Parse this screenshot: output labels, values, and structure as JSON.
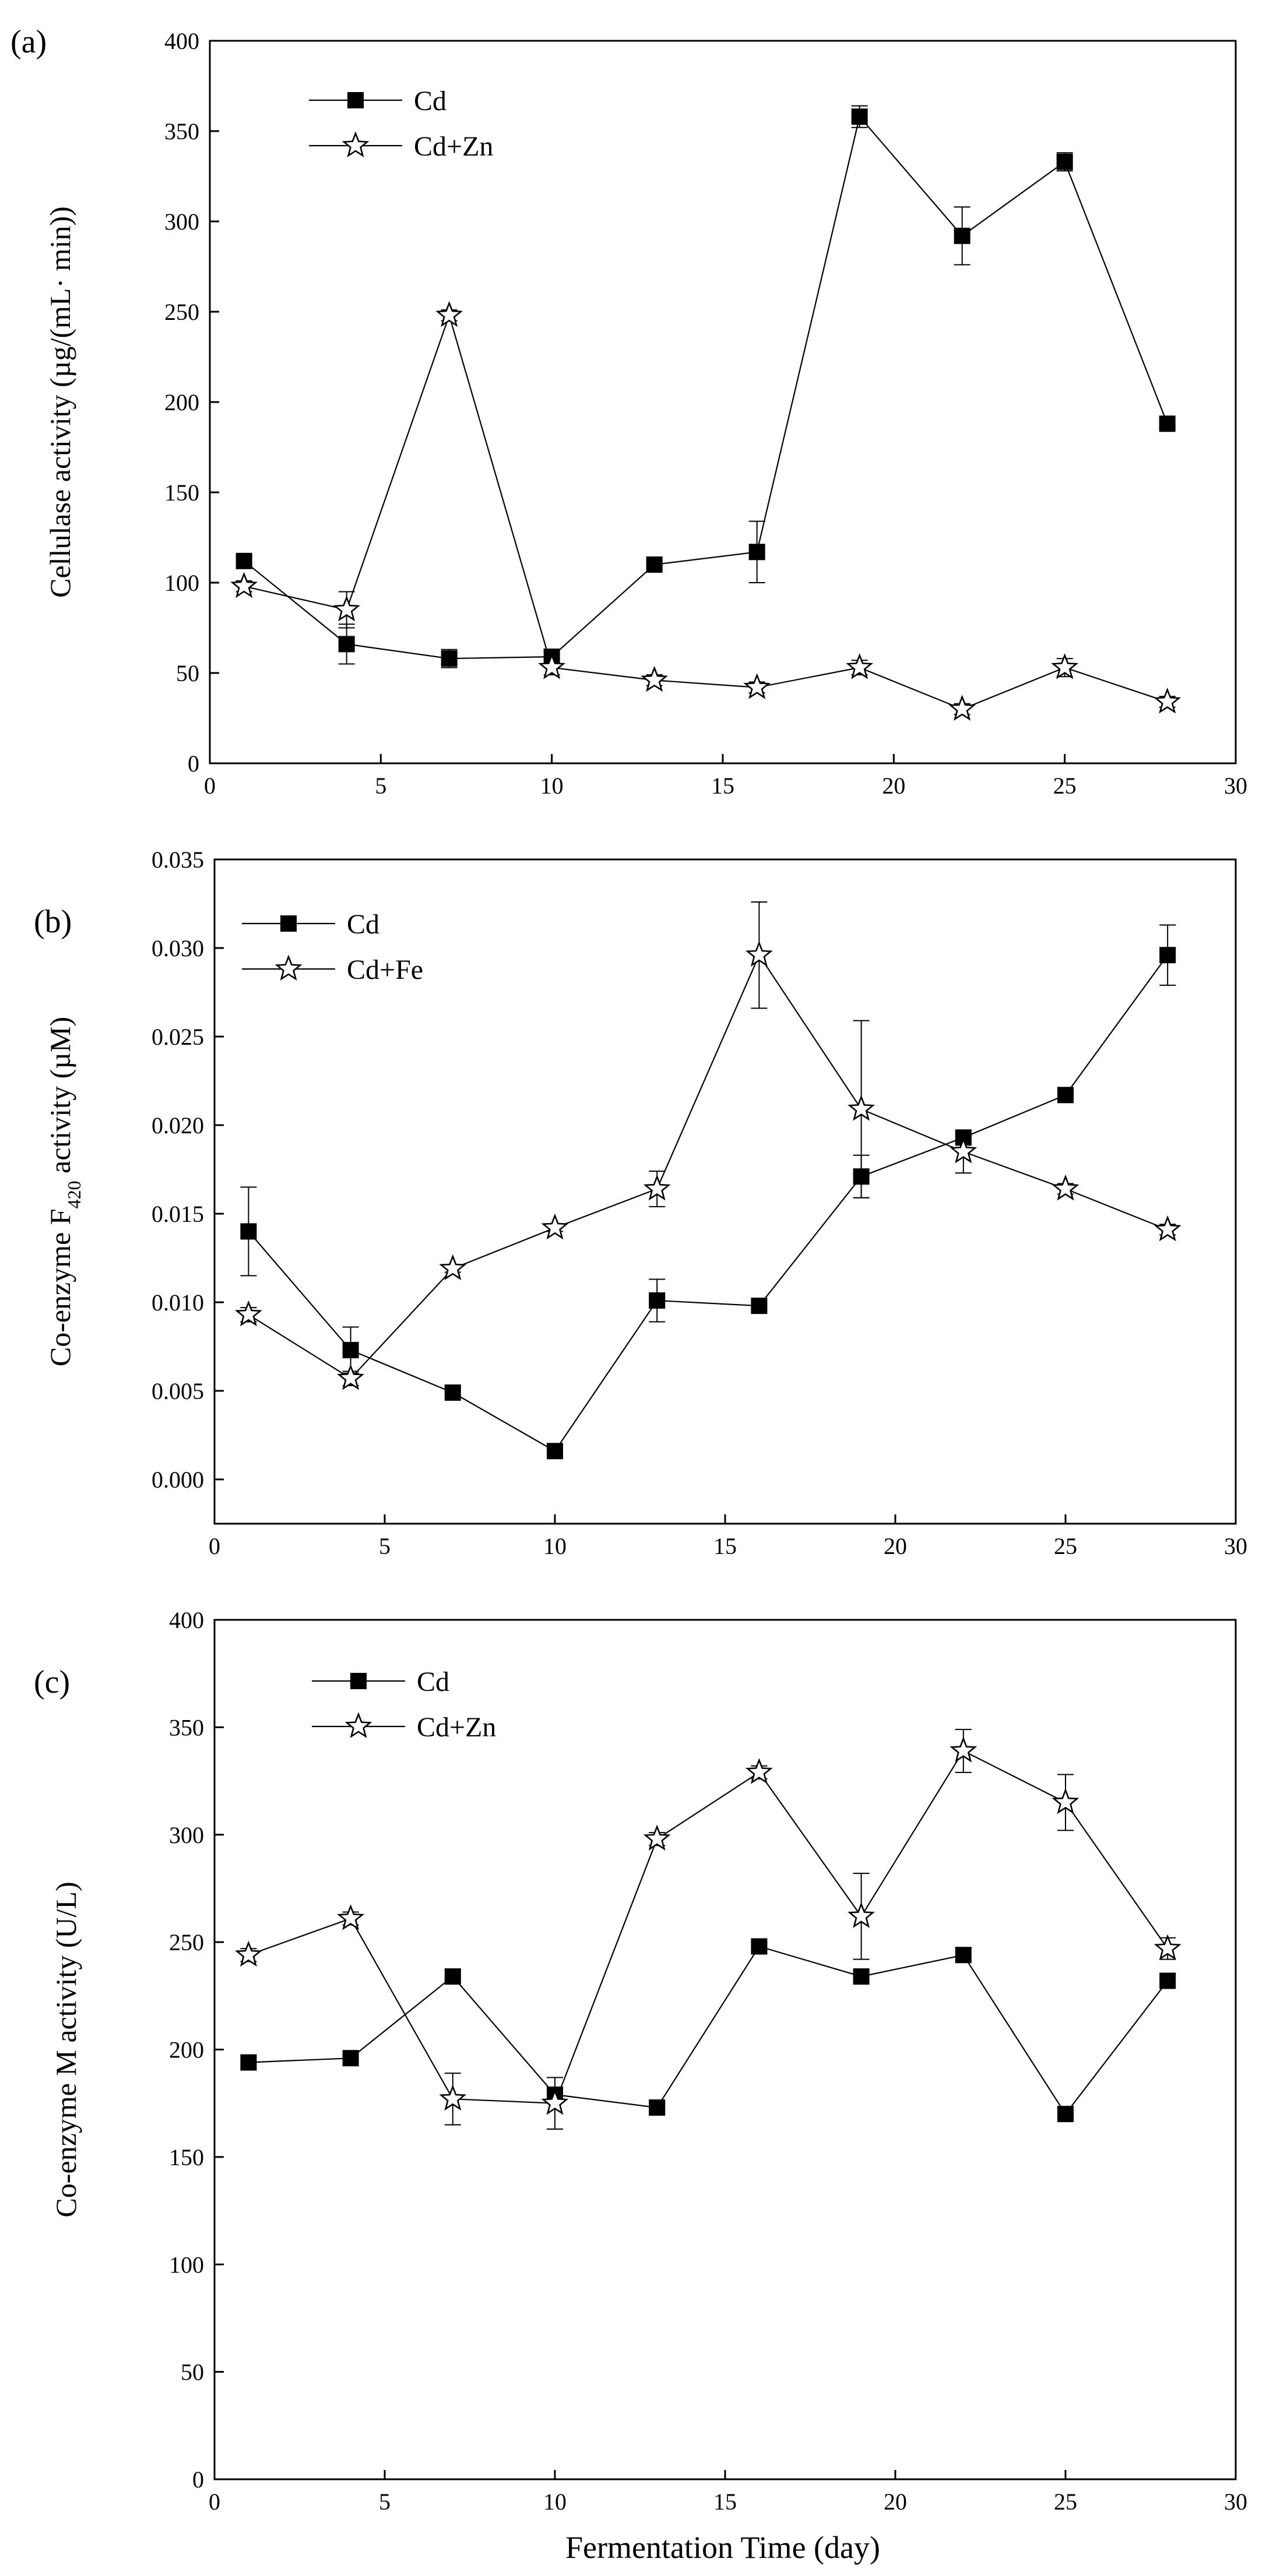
{
  "figure": {
    "xlabel": "Fermentation Time (day)"
  },
  "chart_data": [
    {
      "type": "line",
      "panel_tag": "(a)",
      "ylabel": "Cellulase activity (µg/(mL· min))",
      "xlim": [
        0,
        30
      ],
      "ylim": [
        0,
        400
      ],
      "xticks": [
        0,
        5,
        10,
        15,
        20,
        25,
        30
      ],
      "yticks": [
        0,
        50,
        100,
        150,
        200,
        250,
        300,
        350,
        400
      ],
      "xtick_labels": [
        "0",
        "5",
        "10",
        "15",
        "20",
        "25",
        "30"
      ],
      "ytick_labels": [
        "0",
        "50",
        "100",
        "150",
        "200",
        "250",
        "300",
        "350",
        "400"
      ],
      "legend_position": "top-left",
      "series": [
        {
          "name": "Cd",
          "marker": "square",
          "x": [
            1,
            4,
            7,
            10,
            13,
            16,
            19,
            22,
            25,
            28
          ],
          "y": [
            112,
            66,
            58,
            59,
            110,
            117,
            358,
            292,
            333,
            188
          ],
          "err": [
            3,
            11,
            5,
            4,
            2,
            17,
            6,
            16,
            5,
            2
          ]
        },
        {
          "name": "Cd+Zn",
          "marker": "star",
          "x": [
            1,
            4,
            7,
            10,
            13,
            16,
            19,
            22,
            25,
            28
          ],
          "y": [
            98,
            85,
            248,
            53,
            46,
            42,
            53,
            30,
            53,
            34
          ],
          "err": [
            3,
            10,
            3,
            4,
            3,
            3,
            4,
            3,
            5,
            3
          ]
        }
      ]
    },
    {
      "type": "line",
      "panel_tag": "(b)",
      "ylabel_pre": "Co-enzyme F",
      "ylabel_sub": "420",
      "ylabel_post": " activity (µM)",
      "xlim": [
        0,
        30
      ],
      "ylim": [
        -0.0025,
        0.035
      ],
      "xticks": [
        0,
        5,
        10,
        15,
        20,
        25,
        30
      ],
      "yticks": [
        0,
        0.005,
        0.01,
        0.015,
        0.02,
        0.025,
        0.03,
        0.035
      ],
      "xtick_labels": [
        "0",
        "5",
        "10",
        "15",
        "20",
        "25",
        "30"
      ],
      "ytick_labels": [
        "0.000",
        "0.005",
        "0.010",
        "0.015",
        "0.020",
        "0.025",
        "0.030",
        "0.035"
      ],
      "legend_position": "top-left",
      "series": [
        {
          "name": "Cd",
          "marker": "square",
          "x": [
            1,
            4,
            7,
            10,
            13,
            16,
            19,
            22,
            25,
            28
          ],
          "y": [
            0.014,
            0.0073,
            0.0049,
            0.0016,
            0.0101,
            0.0098,
            0.0171,
            0.0193,
            0.0217,
            0.0296
          ],
          "err": [
            0.0025,
            0.0013,
            0.0002,
            0.0002,
            0.0012,
            0.0002,
            0.0012,
            0.0003,
            0.0002,
            0.0017
          ]
        },
        {
          "name": "Cd+Fe",
          "marker": "star",
          "x": [
            1,
            4,
            7,
            10,
            13,
            16,
            19,
            22,
            25,
            28
          ],
          "y": [
            0.0093,
            0.0057,
            0.0119,
            0.0142,
            0.0164,
            0.0296,
            0.0209,
            0.0185,
            0.0164,
            0.0141
          ],
          "err": [
            0.0004,
            0.0004,
            0.0002,
            0.0002,
            0.001,
            0.003,
            0.005,
            0.0012,
            0.0003,
            0.0003
          ]
        }
      ]
    },
    {
      "type": "line",
      "panel_tag": "(c)",
      "ylabel": "Co-enzyme M activity (U/L)",
      "xlim": [
        0,
        30
      ],
      "ylim": [
        0,
        400
      ],
      "xticks": [
        0,
        5,
        10,
        15,
        20,
        25,
        30
      ],
      "yticks": [
        0,
        50,
        100,
        150,
        200,
        250,
        300,
        350,
        400
      ],
      "xtick_labels": [
        "0",
        "5",
        "10",
        "15",
        "20",
        "25",
        "30"
      ],
      "ytick_labels": [
        "0",
        "50",
        "100",
        "150",
        "200",
        "250",
        "300",
        "350",
        "400"
      ],
      "legend_position": "top-left",
      "series": [
        {
          "name": "Cd",
          "marker": "square",
          "x": [
            1,
            4,
            7,
            10,
            13,
            16,
            19,
            22,
            25,
            28
          ],
          "y": [
            194,
            196,
            234,
            179,
            173,
            248,
            234,
            244,
            170,
            232
          ],
          "err": [
            2,
            2,
            3,
            3,
            2,
            2,
            3,
            3,
            2,
            3
          ]
        },
        {
          "name": "Cd+Zn",
          "marker": "star",
          "x": [
            1,
            4,
            7,
            10,
            13,
            16,
            19,
            22,
            25,
            28
          ],
          "y": [
            244,
            261,
            177,
            175,
            298,
            329,
            262,
            339,
            315,
            247
          ],
          "err": [
            3,
            3,
            12,
            12,
            3,
            3,
            20,
            10,
            13,
            5
          ]
        }
      ]
    }
  ]
}
